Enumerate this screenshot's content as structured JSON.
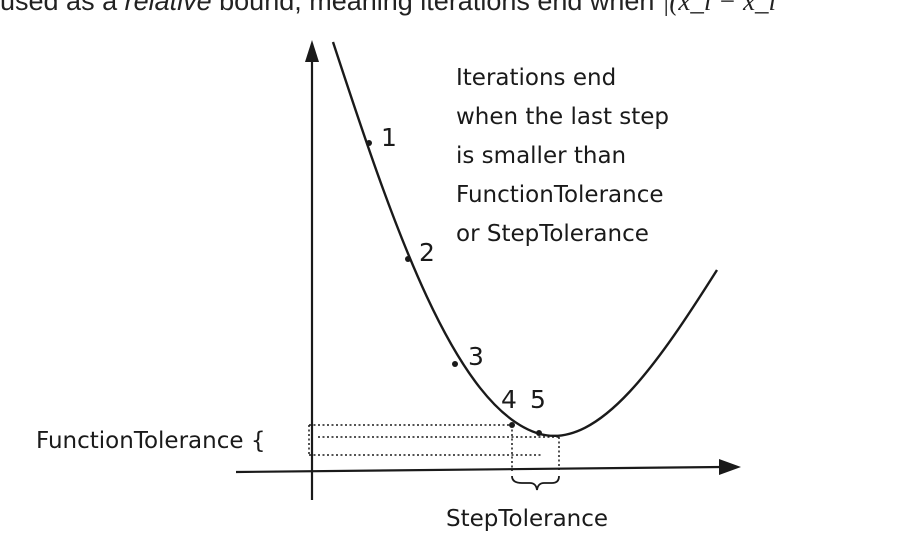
{
  "header": {
    "before_italic": "used as a ",
    "italic": "relative",
    "after_italic": " bound, meaning iterations end when ",
    "math_fragment": "|(x_i − x_i"
  },
  "annotation": {
    "lines": [
      "Iterations end",
      "when the last step",
      "is smaller than",
      "FunctionTolerance",
      "or StepTolerance"
    ]
  },
  "points": [
    "1",
    "2",
    "3",
    "4",
    "5"
  ],
  "labels": {
    "function_tolerance": "FunctionTolerance {",
    "step_tolerance": "StepTolerance"
  }
}
